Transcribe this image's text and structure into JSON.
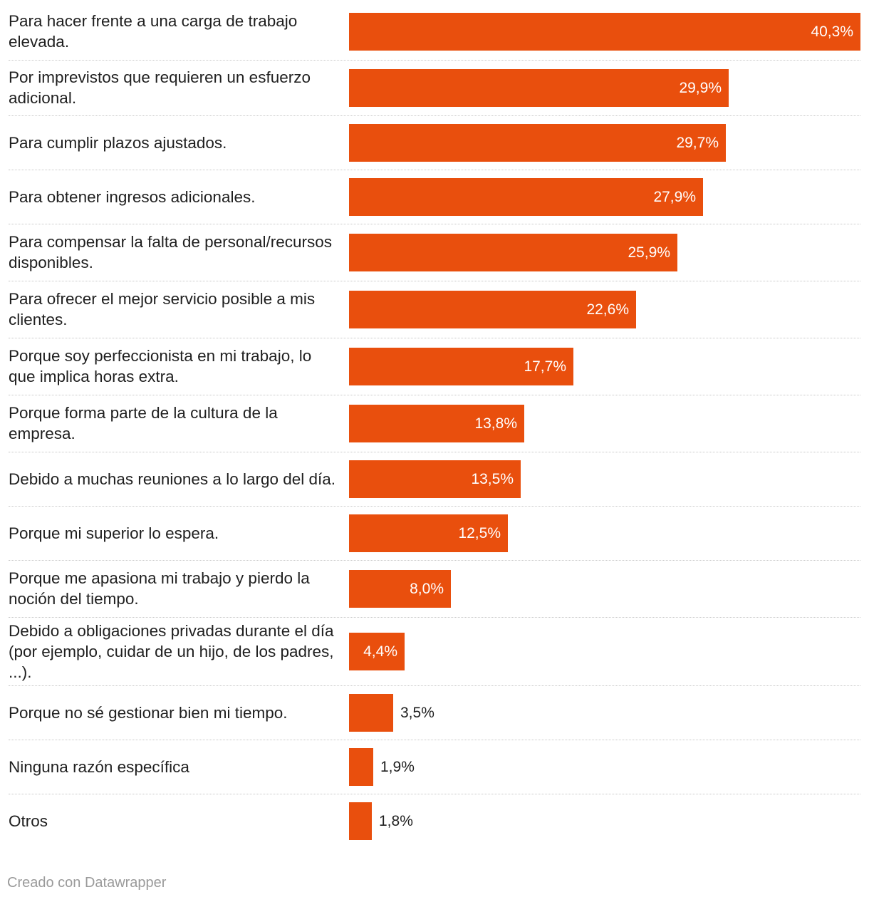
{
  "chart_data": {
    "type": "bar",
    "orientation": "horizontal",
    "bar_color": "#e94f0d",
    "unit": "%",
    "xlim": [
      0,
      40.3
    ],
    "categories": [
      "Para hacer frente a una carga de trabajo elevada.",
      "Por imprevistos que requieren un esfuerzo adicional.",
      "Para cumplir plazos ajustados.",
      "Para obtener ingresos adicionales.",
      "Para compensar la falta de personal/recursos disponibles.",
      "Para ofrecer el mejor servicio posible a mis clientes.",
      "Porque soy perfeccionista en mi trabajo, lo que implica horas extra.",
      "Porque forma parte de la cultura de la empresa.",
      "Debido a muchas reuniones a lo largo del día.",
      "Porque mi superior lo espera.",
      "Porque me apasiona mi trabajo y pierdo la noción del tiempo.",
      "Debido a obligaciones privadas durante el día (por ejemplo, cuidar de un hijo, de los padres, ...).",
      "Porque no sé gestionar bien mi tiempo.",
      "Ninguna razón específica",
      "Otros"
    ],
    "values": [
      40.3,
      29.9,
      29.7,
      27.9,
      25.9,
      22.6,
      17.7,
      13.8,
      13.5,
      12.5,
      8.0,
      4.4,
      3.5,
      1.9,
      1.8
    ],
    "value_labels": [
      "40,3%",
      "29,9%",
      "29,7%",
      "27,9%",
      "25,9%",
      "22,6%",
      "17,7%",
      "13,8%",
      "13,5%",
      "12,5%",
      "8,0%",
      "4,4%",
      "3,5%",
      "1,9%",
      "1,8%"
    ]
  },
  "footer": {
    "credit": "Creado con Datawrapper"
  }
}
